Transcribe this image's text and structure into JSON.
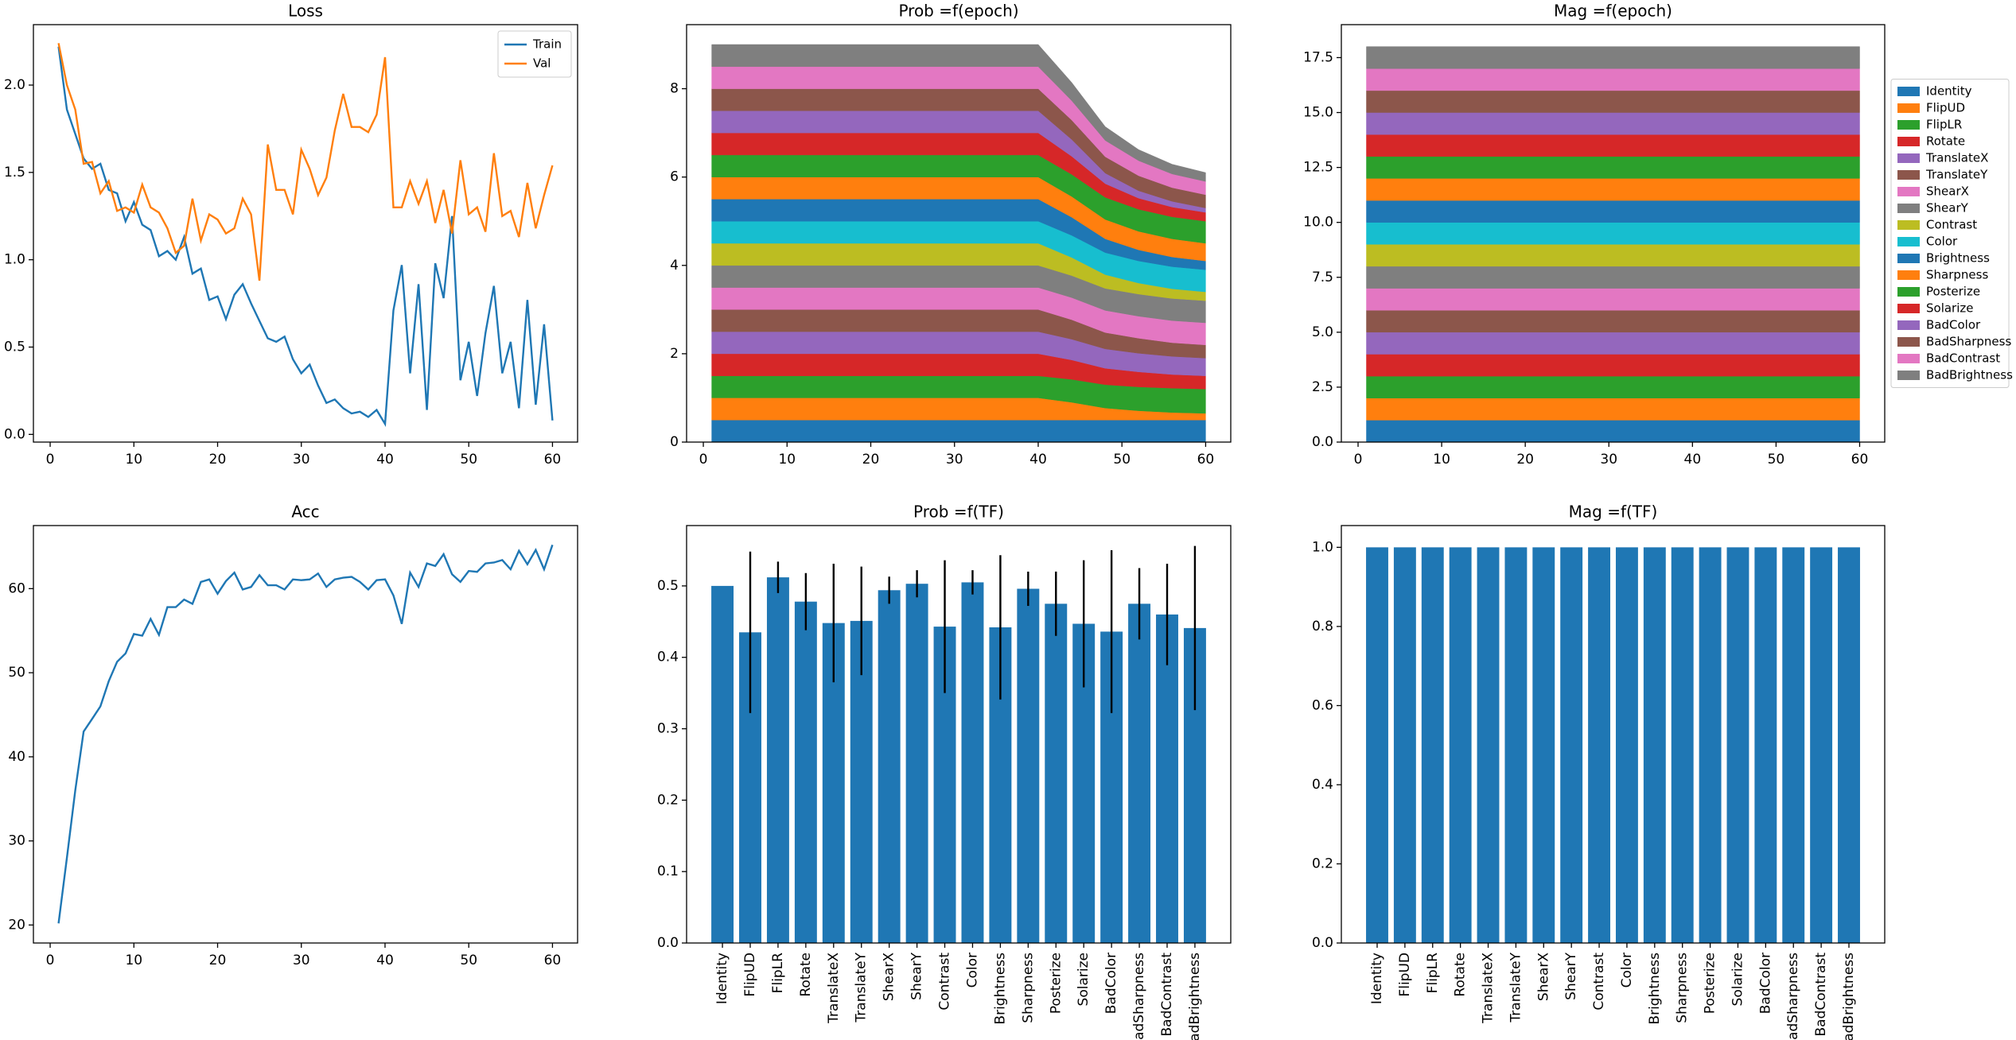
{
  "chart_data": [
    {
      "type": "line",
      "title": "Loss",
      "x": [
        1,
        2,
        3,
        4,
        5,
        6,
        7,
        8,
        9,
        10,
        11,
        12,
        13,
        14,
        15,
        16,
        17,
        18,
        19,
        20,
        21,
        22,
        23,
        24,
        25,
        26,
        27,
        28,
        29,
        30,
        31,
        32,
        33,
        34,
        35,
        36,
        37,
        38,
        39,
        40,
        41,
        42,
        43,
        44,
        45,
        46,
        47,
        48,
        49,
        50,
        51,
        52,
        53,
        54,
        55,
        56,
        57,
        58,
        59,
        60
      ],
      "series": [
        {
          "name": "Train",
          "color": "#1f77b4",
          "values": [
            2.22,
            1.86,
            1.72,
            1.58,
            1.52,
            1.55,
            1.4,
            1.38,
            1.22,
            1.33,
            1.2,
            1.17,
            1.02,
            1.05,
            1.0,
            1.13,
            0.92,
            0.95,
            0.77,
            0.79,
            0.66,
            0.8,
            0.86,
            0.75,
            0.65,
            0.55,
            0.53,
            0.56,
            0.43,
            0.35,
            0.4,
            0.28,
            0.18,
            0.2,
            0.15,
            0.12,
            0.13,
            0.1,
            0.14,
            0.06,
            0.71,
            0.97,
            0.35,
            0.86,
            0.14,
            0.98,
            0.78,
            1.25,
            0.31,
            0.53,
            0.22,
            0.58,
            0.85,
            0.35,
            0.53,
            0.15,
            0.77,
            0.17,
            0.63,
            0.08
          ]
        },
        {
          "name": "Val",
          "color": "#ff7f0e",
          "values": [
            2.24,
            2.0,
            1.86,
            1.55,
            1.56,
            1.38,
            1.45,
            1.28,
            1.3,
            1.27,
            1.43,
            1.3,
            1.27,
            1.18,
            1.04,
            1.08,
            1.35,
            1.11,
            1.26,
            1.23,
            1.15,
            1.18,
            1.35,
            1.26,
            0.88,
            1.66,
            1.4,
            1.4,
            1.26,
            1.63,
            1.52,
            1.37,
            1.47,
            1.74,
            1.95,
            1.76,
            1.76,
            1.73,
            1.83,
            2.16,
            1.3,
            1.3,
            1.45,
            1.32,
            1.45,
            1.21,
            1.4,
            1.15,
            1.57,
            1.26,
            1.3,
            1.16,
            1.61,
            1.25,
            1.28,
            1.13,
            1.44,
            1.18,
            1.37,
            1.54
          ]
        }
      ],
      "xlim": [
        -2,
        63
      ],
      "xticks": [
        0,
        10,
        20,
        30,
        40,
        50,
        60
      ],
      "ylim": [
        -0.044,
        2.346
      ],
      "yticks": [
        {
          "value": 0,
          "label": "0.0"
        },
        0.5,
        {
          "value": 1,
          "label": "1.0"
        },
        1.5,
        {
          "value": 2,
          "label": "2.0"
        }
      ],
      "legend": "upper right"
    },
    {
      "type": "area",
      "stacked": true,
      "title": "Prob =f(epoch)",
      "x": [
        1,
        40,
        44,
        48,
        52,
        56,
        60
      ],
      "series": [
        {
          "name": "Identity",
          "color": "#1f77b4",
          "values": [
            0.5,
            0.5,
            0.5,
            0.5,
            0.5,
            0.5,
            0.5
          ]
        },
        {
          "name": "FlipUD",
          "color": "#ff7f0e",
          "values": [
            0.5,
            0.5,
            0.4,
            0.27,
            0.21,
            0.17,
            0.15
          ]
        },
        {
          "name": "FlipLR",
          "color": "#2ca02c",
          "values": [
            0.5,
            0.5,
            0.52,
            0.53,
            0.54,
            0.55,
            0.55
          ]
        },
        {
          "name": "Rotate",
          "color": "#d62728",
          "values": [
            0.5,
            0.5,
            0.44,
            0.37,
            0.34,
            0.31,
            0.3
          ]
        },
        {
          "name": "TranslateX",
          "color": "#9467bd",
          "values": [
            0.5,
            0.5,
            0.47,
            0.44,
            0.42,
            0.41,
            0.4
          ]
        },
        {
          "name": "TranslateY",
          "color": "#8c564b",
          "values": [
            0.5,
            0.5,
            0.44,
            0.37,
            0.34,
            0.31,
            0.3
          ]
        },
        {
          "name": "ShearX",
          "color": "#e377c2",
          "values": [
            0.5,
            0.5,
            0.5,
            0.5,
            0.5,
            0.5,
            0.5
          ]
        },
        {
          "name": "ShearY",
          "color": "#7f7f7f",
          "values": [
            0.5,
            0.5,
            0.5,
            0.5,
            0.5,
            0.5,
            0.5
          ]
        },
        {
          "name": "Contrast",
          "color": "#bcbd22",
          "values": [
            0.5,
            0.5,
            0.41,
            0.31,
            0.25,
            0.22,
            0.2
          ]
        },
        {
          "name": "Color",
          "color": "#17becf",
          "values": [
            0.5,
            0.5,
            0.5,
            0.5,
            0.5,
            0.5,
            0.5
          ]
        },
        {
          "name": "Brightness",
          "color": "#1f77b4",
          "values": [
            0.5,
            0.5,
            0.41,
            0.31,
            0.25,
            0.22,
            0.2
          ]
        },
        {
          "name": "Sharpness",
          "color": "#ff7f0e",
          "values": [
            0.5,
            0.5,
            0.47,
            0.44,
            0.42,
            0.41,
            0.4
          ]
        },
        {
          "name": "Posterize",
          "color": "#2ca02c",
          "values": [
            0.5,
            0.5,
            0.5,
            0.5,
            0.5,
            0.5,
            0.5
          ]
        },
        {
          "name": "Solarize",
          "color": "#d62728",
          "values": [
            0.5,
            0.5,
            0.41,
            0.31,
            0.25,
            0.22,
            0.2
          ]
        },
        {
          "name": "BadColor",
          "color": "#9467bd",
          "values": [
            0.5,
            0.5,
            0.38,
            0.24,
            0.17,
            0.13,
            0.1
          ]
        },
        {
          "name": "BadSharpness",
          "color": "#8c564b",
          "values": [
            0.5,
            0.5,
            0.44,
            0.37,
            0.34,
            0.31,
            0.3
          ]
        },
        {
          "name": "BadContrast",
          "color": "#e377c2",
          "values": [
            0.5,
            0.5,
            0.44,
            0.37,
            0.34,
            0.31,
            0.3
          ]
        },
        {
          "name": "BadBrightness",
          "color": "#7f7f7f",
          "values": [
            0.5,
            0.5,
            0.41,
            0.31,
            0.25,
            0.22,
            0.2
          ]
        }
      ],
      "xlim": [
        -2,
        63
      ],
      "xticks": [
        0,
        10,
        20,
        30,
        40,
        50,
        60
      ],
      "ylim": [
        0,
        9.45
      ],
      "yticks": [
        0,
        2,
        4,
        6,
        8
      ]
    },
    {
      "type": "area",
      "stacked": true,
      "title": "Mag =f(epoch)",
      "x": [
        1,
        60
      ],
      "series": [
        {
          "name": "Identity",
          "color": "#1f77b4",
          "values": [
            1,
            1
          ]
        },
        {
          "name": "FlipUD",
          "color": "#ff7f0e",
          "values": [
            1,
            1
          ]
        },
        {
          "name": "FlipLR",
          "color": "#2ca02c",
          "values": [
            1,
            1
          ]
        },
        {
          "name": "Rotate",
          "color": "#d62728",
          "values": [
            1,
            1
          ]
        },
        {
          "name": "TranslateX",
          "color": "#9467bd",
          "values": [
            1,
            1
          ]
        },
        {
          "name": "TranslateY",
          "color": "#8c564b",
          "values": [
            1,
            1
          ]
        },
        {
          "name": "ShearX",
          "color": "#e377c2",
          "values": [
            1,
            1
          ]
        },
        {
          "name": "ShearY",
          "color": "#7f7f7f",
          "values": [
            1,
            1
          ]
        },
        {
          "name": "Contrast",
          "color": "#bcbd22",
          "values": [
            1,
            1
          ]
        },
        {
          "name": "Color",
          "color": "#17becf",
          "values": [
            1,
            1
          ]
        },
        {
          "name": "Brightness",
          "color": "#1f77b4",
          "values": [
            1,
            1
          ]
        },
        {
          "name": "Sharpness",
          "color": "#ff7f0e",
          "values": [
            1,
            1
          ]
        },
        {
          "name": "Posterize",
          "color": "#2ca02c",
          "values": [
            1,
            1
          ]
        },
        {
          "name": "Solarize",
          "color": "#d62728",
          "values": [
            1,
            1
          ]
        },
        {
          "name": "BadColor",
          "color": "#9467bd",
          "values": [
            1,
            1
          ]
        },
        {
          "name": "BadSharpness",
          "color": "#8c564b",
          "values": [
            1,
            1
          ]
        },
        {
          "name": "BadContrast",
          "color": "#e377c2",
          "values": [
            1,
            1
          ]
        },
        {
          "name": "BadBrightness",
          "color": "#7f7f7f",
          "values": [
            1,
            1
          ]
        }
      ],
      "xlim": [
        -2,
        63
      ],
      "xticks": [
        0,
        10,
        20,
        30,
        40,
        50,
        60
      ],
      "ylim": [
        0,
        19
      ],
      "yticks": [
        {
          "value": 0,
          "label": "0.0"
        },
        2.5,
        {
          "value": 5,
          "label": "5.0"
        },
        7.5,
        {
          "value": 10,
          "label": "10.0"
        },
        12.5,
        {
          "value": 15,
          "label": "15.0"
        },
        17.5
      ],
      "legend": "outside right"
    },
    {
      "type": "line",
      "title": "Acc",
      "x": [
        1,
        2,
        3,
        4,
        5,
        6,
        7,
        8,
        9,
        10,
        11,
        12,
        13,
        14,
        15,
        16,
        17,
        18,
        19,
        20,
        21,
        22,
        23,
        24,
        25,
        26,
        27,
        28,
        29,
        30,
        31,
        32,
        33,
        34,
        35,
        36,
        37,
        38,
        39,
        40,
        41,
        42,
        43,
        44,
        45,
        46,
        47,
        48,
        49,
        50,
        51,
        52,
        53,
        54,
        55,
        56,
        57,
        58,
        59,
        60
      ],
      "values": [
        20.2,
        28,
        36,
        43,
        44.5,
        46,
        49,
        51.3,
        52.3,
        54.6,
        54.4,
        56.4,
        54.5,
        57.8,
        57.8,
        58.7,
        58.2,
        60.8,
        61.1,
        59.4,
        60.9,
        61.9,
        59.9,
        60.2,
        61.6,
        60.4,
        60.4,
        59.9,
        61.1,
        61.0,
        61.1,
        61.8,
        60.2,
        61.1,
        61.3,
        61.4,
        60.8,
        59.9,
        61.0,
        61.1,
        59.2,
        55.8,
        61.9,
        60.2,
        63.0,
        62.7,
        64.1,
        61.7,
        60.8,
        62.1,
        62.0,
        63.0,
        63.1,
        63.4,
        62.3,
        64.5,
        62.9,
        64.6,
        62.3,
        65.2
      ],
      "color": "#1f77b4",
      "xlim": [
        -2,
        63
      ],
      "xticks": [
        0,
        10,
        20,
        30,
        40,
        50,
        60
      ],
      "ylim": [
        17.86,
        67.5
      ],
      "yticks": [
        20,
        30,
        40,
        50,
        60
      ]
    },
    {
      "type": "bar",
      "title": "Prob =f(TF)",
      "categories": [
        "Identity",
        "FlipUD",
        "FlipLR",
        "Rotate",
        "TranslateX",
        "TranslateY",
        "ShearX",
        "ShearY",
        "Contrast",
        "Color",
        "Brightness",
        "Sharpness",
        "Posterize",
        "Solarize",
        "BadColor",
        "BadSharpness",
        "BadContrast",
        "BadBrightness"
      ],
      "values": [
        0.5,
        0.435,
        0.512,
        0.478,
        0.448,
        0.451,
        0.494,
        0.503,
        0.443,
        0.505,
        0.442,
        0.496,
        0.475,
        0.447,
        0.436,
        0.475,
        0.46,
        0.441
      ],
      "errors": [
        0,
        0.113,
        0.022,
        0.04,
        0.083,
        0.076,
        0.019,
        0.019,
        0.093,
        0.017,
        0.101,
        0.024,
        0.045,
        0.089,
        0.114,
        0.05,
        0.071,
        0.115
      ],
      "color": "#1f77b4",
      "error_color": "#000000",
      "ylim": [
        0,
        0.5845
      ],
      "yticks": [
        {
          "value": 0,
          "label": "0.0"
        },
        0.1,
        0.2,
        0.3,
        0.4,
        0.5
      ]
    },
    {
      "type": "bar",
      "title": "Mag =f(TF)",
      "categories": [
        "Identity",
        "FlipUD",
        "FlipLR",
        "Rotate",
        "TranslateX",
        "TranslateY",
        "ShearX",
        "ShearY",
        "Contrast",
        "Color",
        "Brightness",
        "Sharpness",
        "Posterize",
        "Solarize",
        "BadColor",
        "BadSharpness",
        "BadContrast",
        "BadBrightness"
      ],
      "values": [
        1,
        1,
        1,
        1,
        1,
        1,
        1,
        1,
        1,
        1,
        1,
        1,
        1,
        1,
        1,
        1,
        1,
        1
      ],
      "color": "#1f77b4",
      "ylim": [
        0,
        1.055
      ],
      "yticks": [
        {
          "value": 0,
          "label": "0.0"
        },
        0.2,
        0.4,
        0.6,
        0.8,
        {
          "value": 1,
          "label": "1.0"
        }
      ]
    }
  ]
}
